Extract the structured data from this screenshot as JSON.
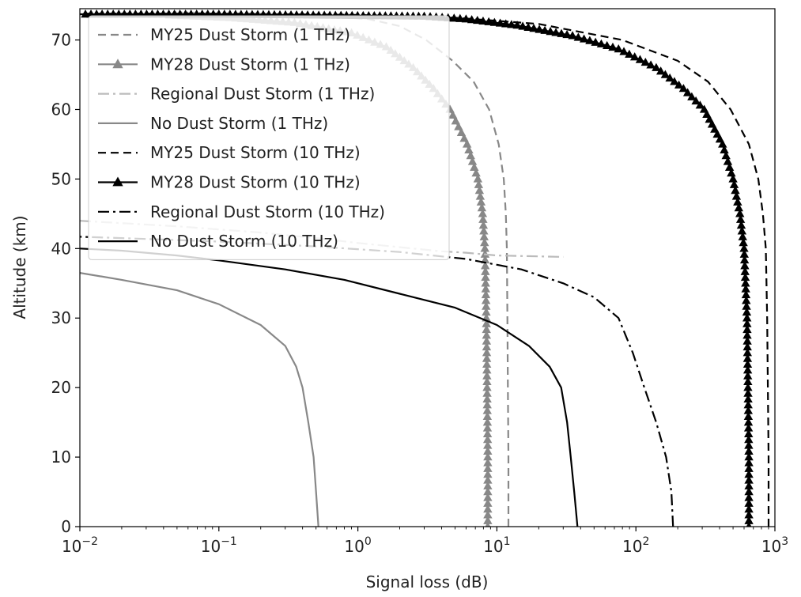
{
  "chart_data": {
    "type": "line",
    "xlabel": "Signal loss (dB)",
    "ylabel": "Altitude (km)",
    "xscale": "log",
    "xlim": [
      0.01,
      1000
    ],
    "ylim": [
      0,
      74.5
    ],
    "xticks": [
      {
        "value": 0.01,
        "base": "10",
        "exp": "−2"
      },
      {
        "value": 0.1,
        "base": "10",
        "exp": "−1"
      },
      {
        "value": 1,
        "base": "10",
        "exp": "0"
      },
      {
        "value": 10,
        "base": "10",
        "exp": "1"
      },
      {
        "value": 100,
        "base": "10",
        "exp": "2"
      },
      {
        "value": 1000,
        "base": "10",
        "exp": "3"
      }
    ],
    "yticks": [
      "0",
      "10",
      "20",
      "30",
      "40",
      "50",
      "60",
      "70"
    ],
    "grid": false,
    "legend_position": "upper-left",
    "series": [
      {
        "name": "MY25 Dust Storm (1 THz)",
        "color": "#888888",
        "linestyle": "dashed",
        "marker": "none",
        "points": [
          [
            12.1,
            0
          ],
          [
            12.1,
            10
          ],
          [
            12.0,
            20
          ],
          [
            11.9,
            30
          ],
          [
            11.8,
            40
          ],
          [
            11.6,
            45
          ],
          [
            11.2,
            50
          ],
          [
            10.3,
            55
          ],
          [
            8.8,
            60
          ],
          [
            6.8,
            64
          ],
          [
            4.8,
            67
          ],
          [
            3.1,
            70
          ],
          [
            2.0,
            72
          ],
          [
            1.2,
            73
          ],
          [
            0.6,
            73.4
          ]
        ]
      },
      {
        "name": "MY28 Dust Storm (1 THz)",
        "color": "#888888",
        "linestyle": "solid",
        "marker": "triangle",
        "points": [
          [
            8.6,
            0
          ],
          [
            8.6,
            10
          ],
          [
            8.5,
            20
          ],
          [
            8.4,
            30
          ],
          [
            8.3,
            35
          ],
          [
            8.2,
            40
          ],
          [
            7.9,
            45
          ],
          [
            7.3,
            50
          ],
          [
            6.1,
            55
          ],
          [
            4.6,
            60
          ],
          [
            3.5,
            63
          ],
          [
            2.5,
            66
          ],
          [
            1.6,
            69
          ],
          [
            0.9,
            71
          ],
          [
            0.35,
            72.5
          ],
          [
            0.12,
            73.2
          ],
          [
            0.04,
            73.6
          ]
        ]
      },
      {
        "name": "Regional Dust Storm (1 THz)",
        "color": "#bbbbbb",
        "linestyle": "dashdot",
        "marker": "none",
        "points": [
          [
            0.01,
            44
          ],
          [
            0.05,
            43.2
          ],
          [
            0.2,
            42.3
          ],
          [
            0.5,
            41.5
          ],
          [
            1,
            40.8
          ],
          [
            2,
            40.2
          ],
          [
            4,
            39.6
          ],
          [
            6,
            39.4
          ],
          [
            10,
            39
          ],
          [
            30,
            38.8
          ]
        ]
      },
      {
        "name": "No Dust Storm (1 THz)",
        "color": "#888888",
        "linestyle": "solid",
        "marker": "none",
        "points": [
          [
            0.52,
            0
          ],
          [
            0.5,
            5
          ],
          [
            0.48,
            10
          ],
          [
            0.44,
            15
          ],
          [
            0.4,
            20
          ],
          [
            0.36,
            23
          ],
          [
            0.3,
            26
          ],
          [
            0.2,
            29
          ],
          [
            0.1,
            32
          ],
          [
            0.05,
            34
          ],
          [
            0.02,
            35.5
          ],
          [
            0.01,
            36.5
          ]
        ]
      },
      {
        "name": "MY25 Dust Storm (10 THz)",
        "color": "#000000",
        "linestyle": "dashed",
        "marker": "none",
        "points": [
          [
            900,
            0
          ],
          [
            900,
            10
          ],
          [
            890,
            20
          ],
          [
            880,
            30
          ],
          [
            860,
            40
          ],
          [
            820,
            45
          ],
          [
            760,
            50
          ],
          [
            650,
            55
          ],
          [
            480,
            60
          ],
          [
            330,
            64
          ],
          [
            200,
            67
          ],
          [
            80,
            70
          ],
          [
            20,
            72.3
          ],
          [
            5,
            73.2
          ],
          [
            1,
            73.6
          ],
          [
            0.1,
            73.8
          ],
          [
            0.01,
            73.8
          ]
        ]
      },
      {
        "name": "MY28 Dust Storm (10 THz)",
        "color": "#000000",
        "linestyle": "solid",
        "marker": "triangle",
        "points": [
          [
            650,
            0
          ],
          [
            650,
            10
          ],
          [
            640,
            20
          ],
          [
            630,
            30
          ],
          [
            600,
            40
          ],
          [
            560,
            45
          ],
          [
            500,
            50
          ],
          [
            420,
            55
          ],
          [
            310,
            60
          ],
          [
            220,
            63
          ],
          [
            140,
            66
          ],
          [
            75,
            68.7
          ],
          [
            35,
            70.6
          ],
          [
            14,
            72.1
          ],
          [
            6,
            73
          ],
          [
            3,
            73.4
          ],
          [
            0.1,
            73.7
          ],
          [
            0.01,
            73.7
          ]
        ]
      },
      {
        "name": "Regional Dust Storm (10 THz)",
        "color": "#000000",
        "linestyle": "dashdot",
        "marker": "none",
        "points": [
          [
            185,
            0
          ],
          [
            180,
            5
          ],
          [
            165,
            10
          ],
          [
            140,
            15
          ],
          [
            115,
            20
          ],
          [
            95,
            25
          ],
          [
            75,
            30
          ],
          [
            50,
            33
          ],
          [
            30,
            35
          ],
          [
            15,
            37
          ],
          [
            6,
            38.5
          ],
          [
            2,
            39.5
          ],
          [
            0.5,
            40.3
          ],
          [
            0.1,
            41
          ],
          [
            0.02,
            41.5
          ],
          [
            0.01,
            41.7
          ]
        ]
      },
      {
        "name": "No Dust Storm (10 THz)",
        "color": "#000000",
        "linestyle": "solid",
        "marker": "none",
        "points": [
          [
            38,
            0
          ],
          [
            36,
            5
          ],
          [
            34,
            10
          ],
          [
            32,
            15
          ],
          [
            29,
            20
          ],
          [
            24,
            23
          ],
          [
            17,
            26
          ],
          [
            10,
            29
          ],
          [
            5,
            31.5
          ],
          [
            2,
            33.5
          ],
          [
            0.8,
            35.5
          ],
          [
            0.3,
            37
          ],
          [
            0.1,
            38.3
          ],
          [
            0.05,
            39
          ],
          [
            0.02,
            39.7
          ],
          [
            0.01,
            40
          ]
        ]
      }
    ]
  }
}
